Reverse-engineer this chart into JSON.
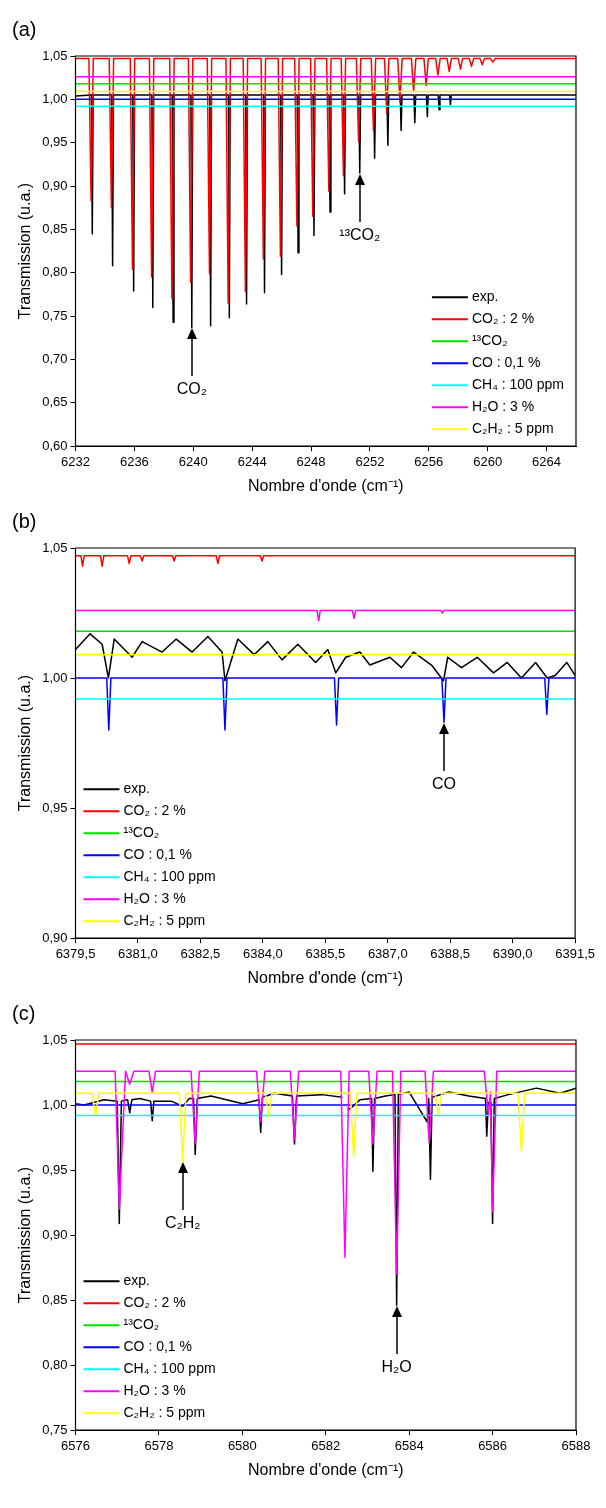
{
  "chart_data": [
    {
      "type": "line",
      "title": "(a)",
      "xlabel": "Nombre d'onde (cm⁻¹)",
      "ylabel": "Transmission (u.a.)",
      "xlim": [
        6232,
        6266
      ],
      "ylim": [
        0.6,
        1.05
      ],
      "xticks": [
        6232,
        6236,
        6240,
        6244,
        6248,
        6252,
        6256,
        6260,
        6264
      ],
      "yticks": [
        {
          "value": 0.6,
          "label": "0,60"
        },
        {
          "value": 0.65,
          "label": "0,65"
        },
        {
          "value": 0.7,
          "label": "0,70"
        },
        {
          "value": 0.75,
          "label": "0,75"
        },
        {
          "value": 0.8,
          "label": "0,80"
        },
        {
          "value": 0.85,
          "label": "0,85"
        },
        {
          "value": 0.9,
          "label": "0,90"
        },
        {
          "value": 0.95,
          "label": "0,95"
        },
        {
          "value": 1.0,
          "label": "1,00"
        },
        {
          "value": 1.05,
          "label": "1,05"
        }
      ],
      "grid": false,
      "legend": "bottom right",
      "marker": "none",
      "line_style": "solid",
      "annotations": [
        {
          "text": "CO₂",
          "x": 6239.9,
          "y": 0.737
        },
        {
          "text": "¹³CO₂",
          "x": 6251.31,
          "y": 0.915
        }
      ],
      "series": [
        {
          "name": "exp.",
          "color": "#000000",
          "x": [
            6232,
            6233.08,
            6233.14,
            6233.2,
            6234.46,
            6234.52,
            6234.58,
            6235.89,
            6235.95,
            6236.01,
            6237.19,
            6237.25,
            6237.31,
            6238.57,
            6238.63,
            6238.69,
            6239.84,
            6239.9,
            6239.96,
            6241.12,
            6241.18,
            6241.24,
            6242.39,
            6242.45,
            6242.51,
            6243.56,
            6243.62,
            6243.68,
            6244.78,
            6244.84,
            6244.9,
            6245.94,
            6246,
            6246.06,
            6247.06,
            6247.12,
            6247.18,
            6248.14,
            6248.2,
            6248.26,
            6249.23,
            6249.29,
            6249.35,
            6250.22,
            6250.28,
            6250.34,
            6251.25,
            6251.31,
            6251.37,
            6252.26,
            6252.32,
            6252.38,
            6253.16,
            6253.22,
            6253.28,
            6254.06,
            6254.12,
            6254.18,
            6254.99,
            6255.05,
            6255.11,
            6255.84,
            6255.9,
            6255.96,
            6256.64,
            6256.7,
            6256.76,
            6257.41,
            6257.47,
            6257.53,
            6266
          ],
          "values": [
            1.004,
            1.005,
            0.845,
            1.005,
            1.005,
            0.808,
            1.005,
            1.005,
            0.779,
            1.005,
            1.005,
            0.76,
            1.005,
            1.005,
            0.743,
            1.005,
            1.005,
            0.737,
            1.005,
            1.005,
            0.739,
            1.005,
            1.005,
            0.748,
            1.005,
            1.005,
            0.764,
            1.005,
            1.005,
            0.777,
            1.005,
            1.005,
            0.798,
            1.005,
            1.005,
            0.823,
            1.005,
            1.005,
            0.843,
            1.005,
            1.005,
            0.87,
            1.005,
            1.005,
            0.891,
            1.005,
            1.005,
            0.915,
            1.005,
            1.005,
            0.932,
            1.005,
            1.005,
            0.947,
            1.005,
            1.005,
            0.964,
            1.005,
            1.005,
            0.973,
            1.005,
            1.005,
            0.98,
            1.005,
            1.005,
            0.988,
            1.005,
            1.005,
            0.994,
            1.005,
            1.005
          ]
        },
        {
          "name": "CO₂ : 2 %",
          "color": "#ff0000",
          "x": [
            6232,
            6232.91,
            6233.06,
            6233.21,
            6234.29,
            6234.44,
            6234.59,
            6235.72,
            6235.87,
            6236.02,
            6237.02,
            6237.17,
            6237.32,
            6238.4,
            6238.55,
            6238.7,
            6239.67,
            6239.82,
            6239.97,
            6240.95,
            6241.1,
            6241.25,
            6242.22,
            6242.37,
            6242.52,
            6243.39,
            6243.54,
            6243.69,
            6244.61,
            6244.76,
            6244.91,
            6245.77,
            6245.92,
            6246.07,
            6246.89,
            6247.04,
            6247.19,
            6247.97,
            6248.12,
            6248.27,
            6249.06,
            6249.21,
            6249.36,
            6250.05,
            6250.2,
            6250.35,
            6251.08,
            6251.23,
            6251.38,
            6252.09,
            6252.24,
            6252.39,
            6252.99,
            6253.14,
            6253.29,
            6253.89,
            6254.04,
            6254.19,
            6254.82,
            6254.97,
            6255.12,
            6255.67,
            6255.82,
            6255.97,
            6256.47,
            6256.62,
            6256.77,
            6257.24,
            6257.39,
            6257.54,
            6258,
            6258.15,
            6258.3,
            6258.75,
            6258.9,
            6259.05,
            6259.48,
            6259.63,
            6259.78,
            6260.2,
            6260.35,
            6260.5,
            6266
          ],
          "values": [
            1.047,
            1.047,
            0.883,
            1.047,
            1.047,
            0.875,
            1.047,
            1.047,
            0.804,
            1.047,
            1.047,
            0.795,
            1.047,
            1.047,
            0.77,
            1.047,
            1.047,
            0.789,
            1.047,
            1.047,
            0.799,
            1.047,
            1.047,
            0.765,
            1.047,
            1.047,
            0.778,
            1.047,
            1.047,
            0.816,
            1.047,
            1.047,
            0.819,
            1.047,
            1.047,
            0.854,
            1.047,
            1.047,
            0.865,
            1.047,
            1.047,
            0.894,
            1.047,
            1.047,
            0.912,
            1.047,
            1.047,
            0.951,
            1.047,
            1.047,
            0.964,
            1.047,
            1.047,
            0.984,
            1.047,
            1.047,
            0.997,
            1.047,
            1.047,
            1.009,
            1.047,
            1.047,
            1.016,
            1.047,
            1.047,
            1.028,
            1.047,
            1.047,
            1.032,
            1.047,
            1.047,
            1.035,
            1.047,
            1.047,
            1.038,
            1.047,
            1.047,
            1.04,
            1.047,
            1.047,
            1.043,
            1.047,
            1.047
          ]
        },
        {
          "name": "¹³CO₂",
          "color": "#00e000",
          "x": [
            6232,
            6266
          ],
          "values": [
            1.018,
            1.018
          ]
        },
        {
          "name": "CO : 0,1 %",
          "color": "#0000ff",
          "x": [
            6232,
            6266
          ],
          "values": [
            1.0,
            1.0
          ]
        },
        {
          "name": "CH₄ : 100 ppm",
          "color": "#00ffff",
          "x": [
            6232,
            6266
          ],
          "values": [
            0.992,
            0.992
          ]
        },
        {
          "name": "H₂O : 3 %",
          "color": "#ff00ff",
          "x": [
            6232,
            6266
          ],
          "values": [
            1.026,
            1.026
          ]
        },
        {
          "name": "C₂H₂ : 5 ppm",
          "color": "#ffff00",
          "x": [
            6232,
            6266
          ],
          "values": [
            1.009,
            1.009
          ]
        }
      ]
    },
    {
      "type": "line",
      "title": "(b)",
      "xlabel": "Nombre d'onde (cm⁻¹)",
      "ylabel": "Transmission (u.a.)",
      "xlim": [
        6379.5,
        6391.5
      ],
      "ylim": [
        0.9,
        1.05
      ],
      "xticks": [
        {
          "value": 6379.5,
          "label": "6379,5"
        },
        {
          "value": 6381,
          "label": "6381,0"
        },
        {
          "value": 6382.5,
          "label": "6382,5"
        },
        {
          "value": 6384,
          "label": "6384,0"
        },
        {
          "value": 6385.5,
          "label": "6385,5"
        },
        {
          "value": 6387,
          "label": "6387,0"
        },
        {
          "value": 6388.5,
          "label": "6388,5"
        },
        {
          "value": 6390,
          "label": "6390,0"
        },
        {
          "value": 6391.5,
          "label": "6391,5"
        }
      ],
      "yticks": [
        {
          "value": 0.9,
          "label": "0,90"
        },
        {
          "value": 0.95,
          "label": "0,95"
        },
        {
          "value": 1.0,
          "label": "1,00"
        },
        {
          "value": 1.05,
          "label": "1,05"
        }
      ],
      "grid": false,
      "legend": "bottom left",
      "marker": "none",
      "line_style": "solid",
      "annotations": [
        {
          "text": "CO",
          "x": 6388.35,
          "y": 0.983
        }
      ],
      "series": [
        {
          "name": "exp.",
          "color": "#000000",
          "x": [
            6379.5,
            6379.85,
            6380.14,
            6380.29,
            6380.43,
            6380.86,
            6381.1,
            6381.58,
            6381.92,
            6382.3,
            6382.68,
            6383.02,
            6383.09,
            6383.4,
            6383.79,
            6384.12,
            6384.46,
            6384.84,
            6385.27,
            6385.56,
            6385.75,
            6385.99,
            6386.33,
            6386.57,
            6387.05,
            6387.33,
            6387.62,
            6388.05,
            6388.34,
            6388.44,
            6388.77,
            6389.15,
            6389.54,
            6389.87,
            6390.21,
            6390.55,
            6390.83,
            6391.02,
            6391.3,
            6391.5
          ],
          "values": [
            1.011,
            1.017,
            1.013,
            1.0,
            1.015,
            1.008,
            1.014,
            1.01,
            1.015,
            1.01,
            1.016,
            1.01,
            0.999,
            1.015,
            1.009,
            1.014,
            1.007,
            1.013,
            1.006,
            1.011,
            1.002,
            1.008,
            1.01,
            1.005,
            1.008,
            1.004,
            1.01,
            1.005,
            0.999,
            1.008,
            1.004,
            1.008,
            1.002,
            1.006,
            1.0,
            1.006,
            1.0,
            1.001,
            1.006,
            1.001
          ]
        },
        {
          "name": "CO₂ : 2 %",
          "color": "#ff0000",
          "x": [
            6379.5,
            6379.63,
            6379.67,
            6379.71,
            6380.1,
            6380.14,
            6380.18,
            6380.75,
            6380.79,
            6380.83,
            6381.06,
            6381.1,
            6381.14,
            6381.83,
            6381.87,
            6381.91,
            6382.88,
            6382.92,
            6382.96,
            6383.94,
            6383.98,
            6384.02,
            6391.5
          ],
          "values": [
            1.047,
            1.047,
            1.043,
            1.047,
            1.047,
            1.043,
            1.047,
            1.047,
            1.044,
            1.047,
            1.047,
            1.045,
            1.047,
            1.047,
            1.045,
            1.047,
            1.047,
            1.044,
            1.047,
            1.047,
            1.045,
            1.047,
            1.047
          ]
        },
        {
          "name": "¹³CO₂",
          "color": "#00e000",
          "x": [
            6379.5,
            6391.5
          ],
          "values": [
            1.018,
            1.018
          ]
        },
        {
          "name": "CO : 0,1 %",
          "color": "#0000ff",
          "x": [
            6379.5,
            6380.25,
            6380.3,
            6380.35,
            6383.04,
            6383.09,
            6383.14,
            6385.72,
            6385.77,
            6385.82,
            6388.3,
            6388.35,
            6388.4,
            6390.77,
            6390.82,
            6390.87,
            6391.5
          ],
          "values": [
            1.0,
            1.0,
            0.98,
            1.0,
            1.0,
            0.98,
            1.0,
            1.0,
            0.982,
            1.0,
            1.0,
            0.983,
            1.0,
            1.0,
            0.986,
            1.0,
            1.0
          ]
        },
        {
          "name": "CH₄ : 100 ppm",
          "color": "#00ffff",
          "x": [
            6379.5,
            6391.5
          ],
          "values": [
            0.992,
            0.992
          ]
        },
        {
          "name": "H₂O : 3 %",
          "color": "#ff00ff",
          "x": [
            6379.5,
            6385.3,
            6385.34,
            6385.38,
            6386.15,
            6386.19,
            6386.23,
            6388.27,
            6388.31,
            6388.35,
            6391.5
          ],
          "values": [
            1.026,
            1.026,
            1.022,
            1.026,
            1.026,
            1.023,
            1.026,
            1.026,
            1.025,
            1.026,
            1.026
          ]
        },
        {
          "name": "C₂H₂ : 5 ppm",
          "color": "#ffff00",
          "x": [
            6379.5,
            6391.5
          ],
          "values": [
            1.009,
            1.009
          ]
        }
      ]
    },
    {
      "type": "line",
      "title": "(c)",
      "xlabel": "Nombre d'onde (cm⁻¹)",
      "ylabel": "Transmission (u.a.)",
      "xlim": [
        6576,
        6588
      ],
      "ylim": [
        0.75,
        1.05
      ],
      "xticks": [
        6576,
        6578,
        6580,
        6582,
        6584,
        6586,
        6588
      ],
      "yticks": [
        {
          "value": 0.75,
          "label": "0,75"
        },
        {
          "value": 0.8,
          "label": "0,80"
        },
        {
          "value": 0.85,
          "label": "0,85"
        },
        {
          "value": 0.9,
          "label": "0,90"
        },
        {
          "value": 0.95,
          "label": "0,95"
        },
        {
          "value": 1.0,
          "label": "1,00"
        },
        {
          "value": 1.05,
          "label": "1,05"
        }
      ],
      "grid": false,
      "legend": "bottom left",
      "marker": "none",
      "line_style": "solid",
      "annotations": [
        {
          "text": "C₂H₂",
          "x": 6578.57,
          "y": 0.957
        },
        {
          "text": "H₂O",
          "x": 6583.7,
          "y": 0.846
        }
      ],
      "series": [
        {
          "name": "exp.",
          "color": "#000000",
          "x": [
            6576,
            6576.21,
            6576.68,
            6577,
            6577.05,
            6577.1,
            6577.25,
            6577.3,
            6577.35,
            6577.54,
            6577.8,
            6577.84,
            6577.88,
            6578.3,
            6578.57,
            6578.73,
            6578.83,
            6578.87,
            6578.92,
            6579.25,
            6580.01,
            6580.4,
            6580.44,
            6580.48,
            6580.77,
            6581.2,
            6581.25,
            6581.3,
            6581.91,
            6582.4,
            6582.46,
            6582.52,
            6582.58,
            6582.82,
            6583.1,
            6583.13,
            6583.17,
            6583.43,
            6583.66,
            6583.7,
            6583.74,
            6584,
            6584.43,
            6584.47,
            6584.51,
            6584.55,
            6584.95,
            6585.43,
            6585.83,
            6585.86,
            6585.9,
            6585.96,
            6586,
            6586.04,
            6586.38,
            6587.05,
            6587.62,
            6588
          ],
          "values": [
            1.001,
            1.0,
            1.004,
            1.003,
            0.909,
            1.003,
            1.004,
            0.994,
            1.004,
            1.005,
            1.003,
            0.988,
            1.003,
            1.003,
            0.999,
            1.005,
            1.005,
            0.962,
            1.005,
            1.007,
            1.001,
            1.004,
            0.979,
            1.006,
            1.009,
            1.007,
            0.97,
            1.007,
            1.008,
            1.006,
            null,
            0.997,
            0.997,
            1.004,
            1.005,
            0.949,
            1.005,
            1.007,
            1.008,
            0.846,
            1.008,
            1.01,
            0.987,
            1.005,
            0.943,
            1.006,
            1.01,
            1.007,
            1.005,
            0.976,
            1.002,
            1.002,
            0.909,
            1.005,
            1.008,
            1.013,
            1.009,
            1.013
          ]
        },
        {
          "name": "CO₂ : 2 %",
          "color": "#ff0000",
          "x": [
            6576,
            6588
          ],
          "values": [
            1.047,
            1.047
          ]
        },
        {
          "name": "¹³CO₂",
          "color": "#00e000",
          "x": [
            6576,
            6588
          ],
          "values": [
            1.018,
            1.018
          ]
        },
        {
          "name": "CO : 0,1 %",
          "color": "#0000ff",
          "x": [
            6576,
            6588
          ],
          "values": [
            1.0,
            1.0
          ]
        },
        {
          "name": "CH₄ : 100 ppm",
          "color": "#00ffff",
          "x": [
            6576,
            6588
          ],
          "values": [
            0.992,
            0.992
          ]
        },
        {
          "name": "H₂O : 3 %",
          "color": "#ff00ff",
          "x": [
            6576,
            6576.95,
            6577.05,
            6577.2,
            6577.3,
            6577.4,
            6577.76,
            6577.84,
            6577.92,
            6578.77,
            6578.87,
            6578.97,
            6580.34,
            6580.44,
            6580.54,
            6581.15,
            6581.25,
            6581.35,
            6582.36,
            6582.46,
            6582.56,
            6583.03,
            6583.13,
            6583.23,
            6583.6,
            6583.7,
            6583.8,
            6584.38,
            6584.48,
            6584.58,
            6585.8,
            6585.9,
            6585.95,
            6586,
            6586.1,
            6588
          ],
          "values": [
            1.026,
            1.026,
            0.92,
            1.026,
            1.016,
            1.026,
            1.026,
            1.01,
            1.026,
            1.026,
            0.97,
            1.026,
            1.026,
            0.987,
            1.026,
            1.026,
            0.973,
            1.026,
            1.026,
            0.883,
            1.026,
            1.026,
            0.97,
            1.026,
            1.026,
            0.87,
            1.026,
            1.026,
            0.971,
            1.026,
            1.026,
            0.993,
            1.01,
            0.918,
            1.026,
            1.026
          ]
        },
        {
          "name": "C₂H₂ : 5 ppm",
          "color": "#ffff00",
          "x": [
            6576,
            6576.4,
            6576.48,
            6576.56,
            6578.49,
            6578.57,
            6578.65,
            6580.55,
            6580.63,
            6580.71,
            6582.59,
            6582.67,
            6582.75,
            6584.62,
            6584.7,
            6584.78,
            6586.61,
            6586.69,
            6586.77,
            6588
          ],
          "values": [
            1.009,
            1.009,
            0.992,
            1.009,
            1.009,
            0.957,
            1.009,
            1.009,
            0.991,
            1.009,
            1.009,
            0.96,
            1.009,
            1.009,
            0.993,
            1.009,
            1.009,
            0.964,
            1.009,
            1.009
          ]
        }
      ]
    }
  ]
}
